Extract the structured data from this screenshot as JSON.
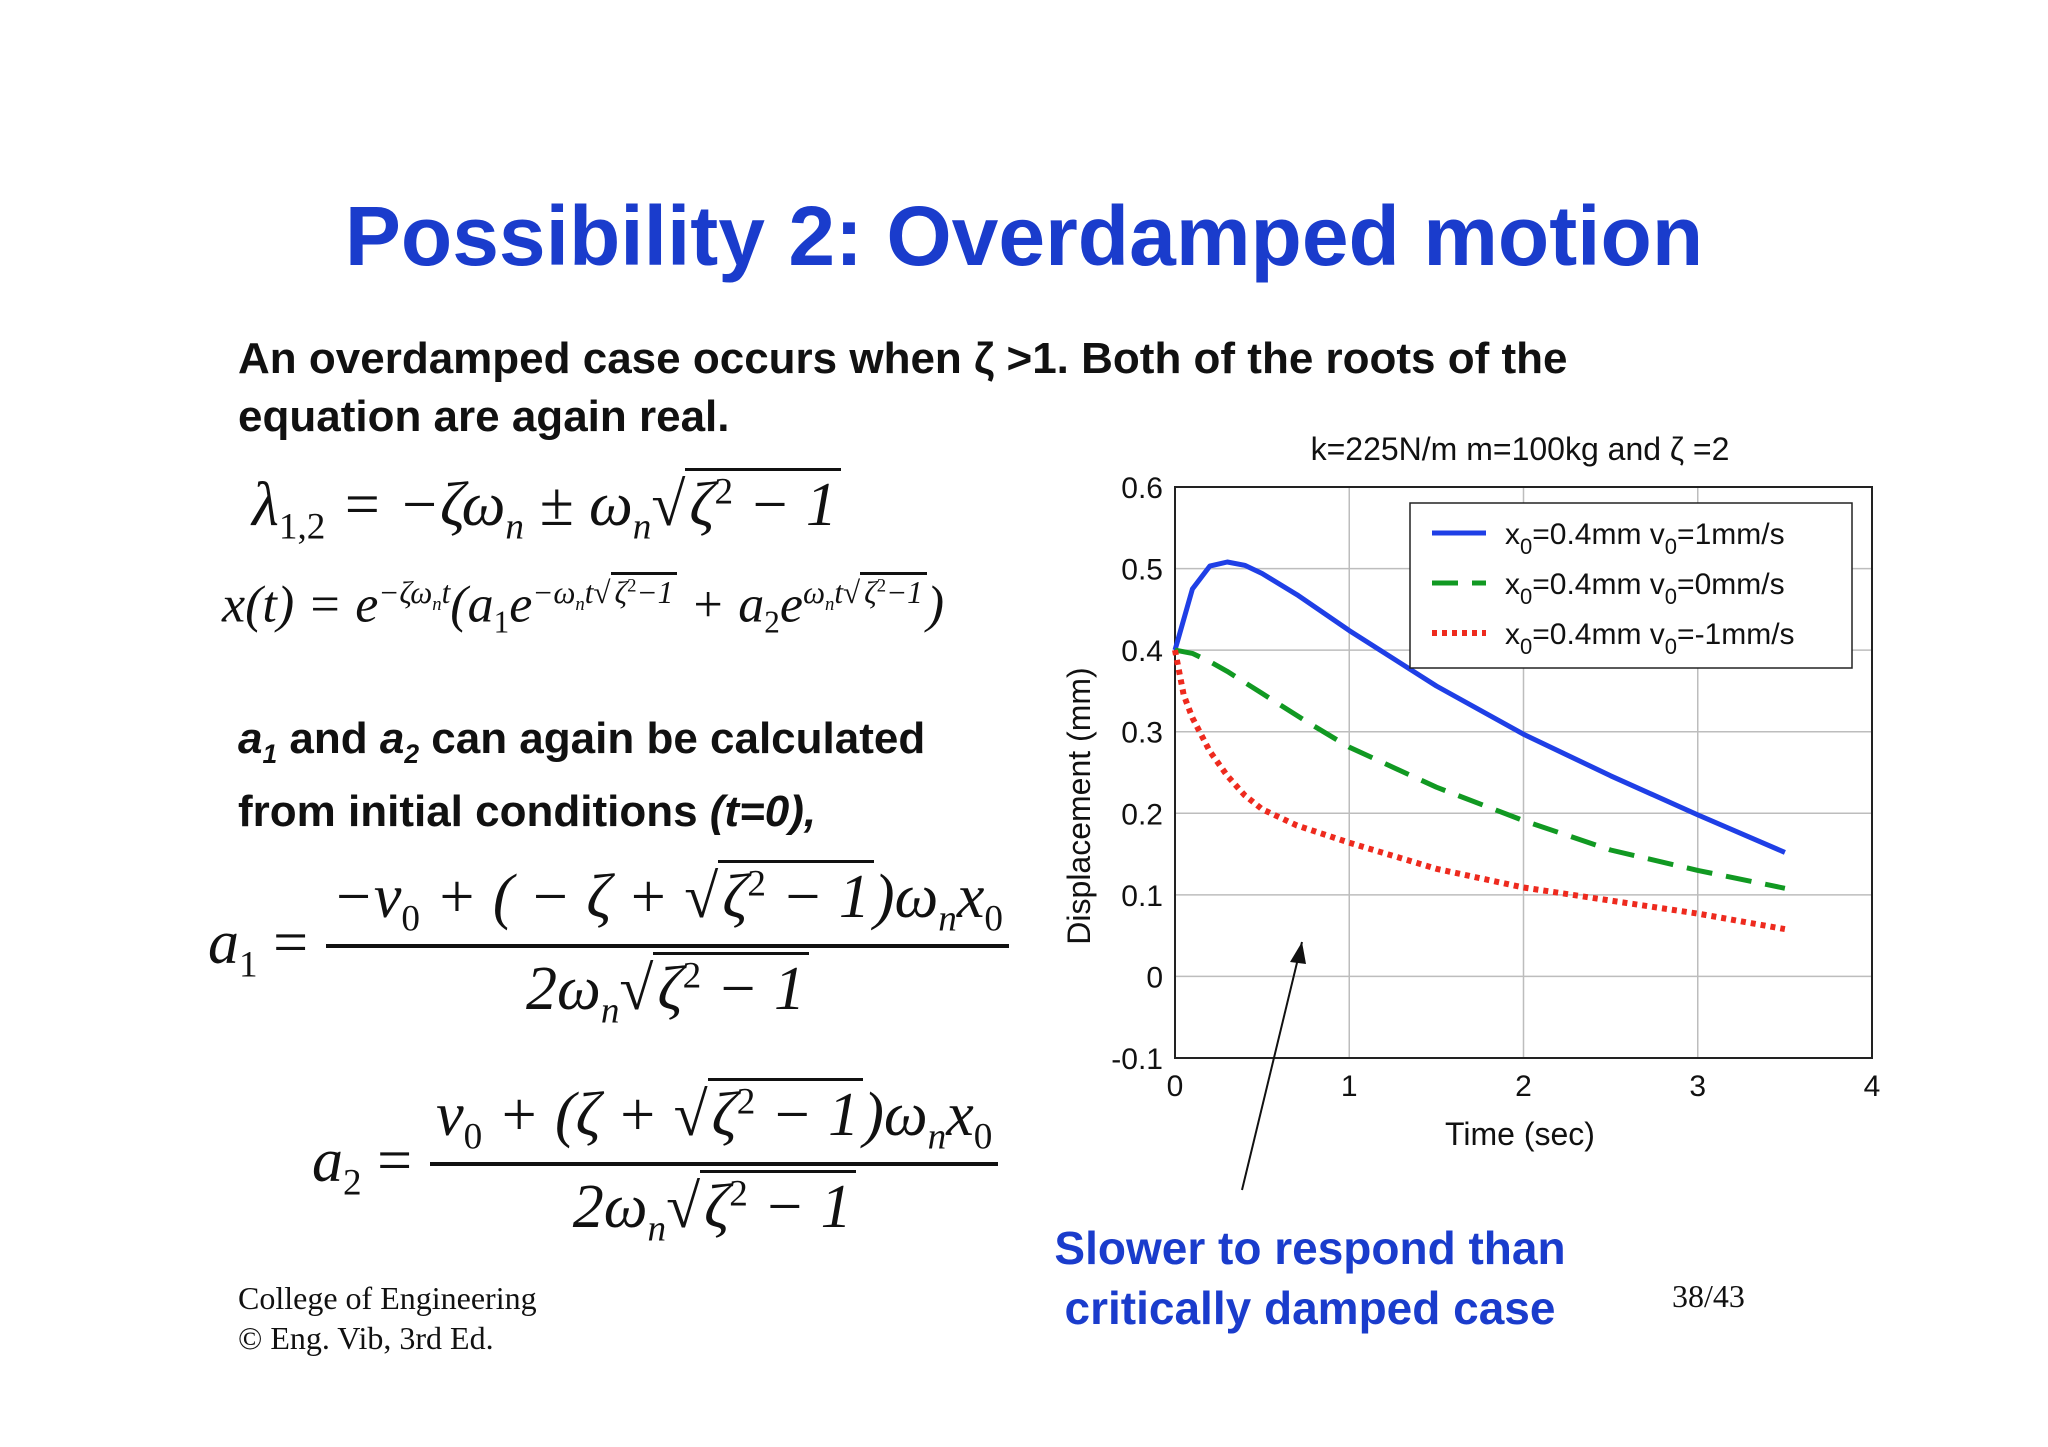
{
  "slide": {
    "title": "Possibility 2: Overdamped motion",
    "intro_lines": [
      "An overdamped case occurs when ζ >1. Both of the roots of the",
      "equation are again real."
    ],
    "coef_text": {
      "a1": "a",
      "a1_sub": "1",
      "and": " and ",
      "a2": "a",
      "a2_sub": "2",
      "rest": " can again be calculated",
      "line2_prefix": "from initial conditions ",
      "line2_italic": "(t=0),"
    },
    "footer": {
      "line1": "College of Engineering",
      "line2": "© Eng. Vib, 3rd Ed.",
      "page": "38/43"
    },
    "callout_lines": [
      "Slower to respond than",
      "critically damped case"
    ]
  },
  "chart_data": {
    "type": "line",
    "title": "k=225N/m m=100kg and   ζ =2",
    "xlabel": "Time (sec)",
    "ylabel": "Displacement (mm)",
    "xlim": [
      0,
      4
    ],
    "ylim": [
      -0.1,
      0.6
    ],
    "xticks": [
      "0",
      "1",
      "2",
      "3",
      "4"
    ],
    "yticks": [
      "-0.1",
      "0",
      "0.1",
      "0.2",
      "0.3",
      "0.4",
      "0.5",
      "0.6"
    ],
    "grid": true,
    "legend_position": "top-right",
    "series": [
      {
        "name_main": "x",
        "name_sub1": "0",
        "name_mid": "=0.4mm v",
        "name_sub2": "0",
        "name_end": "=1mm/s",
        "color": "#1f3fe6",
        "style": "solid",
        "x": [
          0,
          0.1,
          0.2,
          0.3,
          0.4,
          0.5,
          0.7,
          1.0,
          1.5,
          2.0,
          2.5,
          3.0,
          3.5
        ],
        "y": [
          0.4,
          0.475,
          0.503,
          0.508,
          0.504,
          0.494,
          0.468,
          0.424,
          0.356,
          0.297,
          0.246,
          0.198,
          0.152
        ]
      },
      {
        "name_main": "x",
        "name_sub1": "0",
        "name_mid": "=0.4mm v",
        "name_sub2": "0",
        "name_end": "=0mm/s",
        "color": "#119922",
        "style": "dashed",
        "x": [
          0,
          0.1,
          0.2,
          0.3,
          0.5,
          0.75,
          1.0,
          1.5,
          2.0,
          2.5,
          3.0,
          3.5
        ],
        "y": [
          0.4,
          0.396,
          0.386,
          0.374,
          0.347,
          0.313,
          0.281,
          0.232,
          0.191,
          0.155,
          0.13,
          0.108
        ]
      },
      {
        "name_main": "x",
        "name_sub1": "0",
        "name_mid": "=0.4mm v",
        "name_sub2": "0",
        "name_end": "=-1mm/s",
        "color": "#ee2a1e",
        "style": "dotted",
        "x": [
          0,
          0.05,
          0.1,
          0.2,
          0.3,
          0.4,
          0.5,
          0.7,
          1.0,
          1.5,
          2.0,
          2.5,
          3.0,
          3.5
        ],
        "y": [
          0.4,
          0.345,
          0.317,
          0.276,
          0.246,
          0.222,
          0.205,
          0.185,
          0.164,
          0.132,
          0.109,
          0.093,
          0.077,
          0.058
        ]
      }
    ]
  },
  "colors": {
    "title": "#1a3ccc",
    "callout": "#1a3ccc"
  }
}
